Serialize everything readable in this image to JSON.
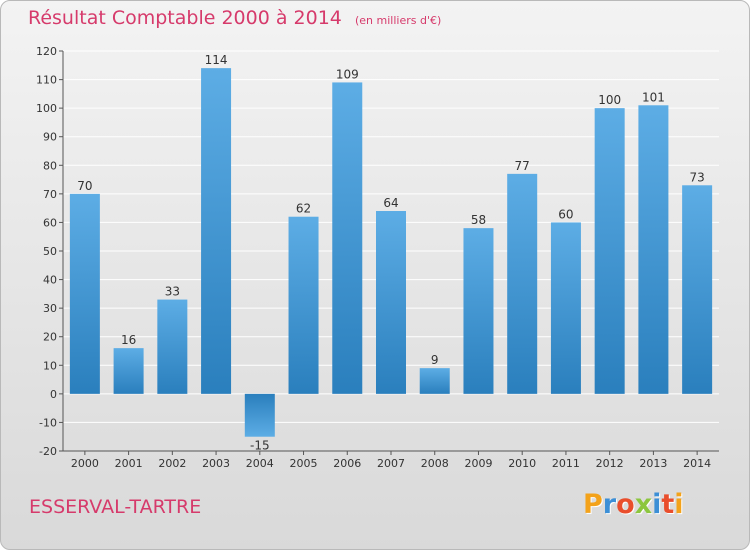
{
  "title": "Résultat Comptable 2000 à 2014",
  "subtitle": "(en milliers d'€)",
  "commune": "ESSERVAL-TARTRE",
  "brand": {
    "text": "Proxiti",
    "letter_colors": [
      "#f3a21a",
      "#3c8fd6",
      "#e94e2c",
      "#8cc63e",
      "#3c8fd6",
      "#e94e2c",
      "#f3a21a"
    ]
  },
  "colors": {
    "title": "#d63a6b",
    "bar_light": "#5dade5",
    "bar_dark": "#2a7fbd",
    "axis": "#555555"
  },
  "chart_data": {
    "type": "bar",
    "categories": [
      "2000",
      "2001",
      "2002",
      "2003",
      "2004",
      "2005",
      "2006",
      "2007",
      "2008",
      "2009",
      "2010",
      "2011",
      "2012",
      "2013",
      "2014"
    ],
    "values": [
      70,
      16,
      33,
      114,
      -15,
      62,
      109,
      64,
      9,
      58,
      77,
      60,
      100,
      101,
      73
    ],
    "ylim": [
      -20,
      120
    ],
    "yticks": [
      -20,
      -10,
      0,
      10,
      20,
      30,
      40,
      50,
      60,
      70,
      80,
      90,
      100,
      110,
      120
    ],
    "grid": true,
    "legend": "none"
  }
}
